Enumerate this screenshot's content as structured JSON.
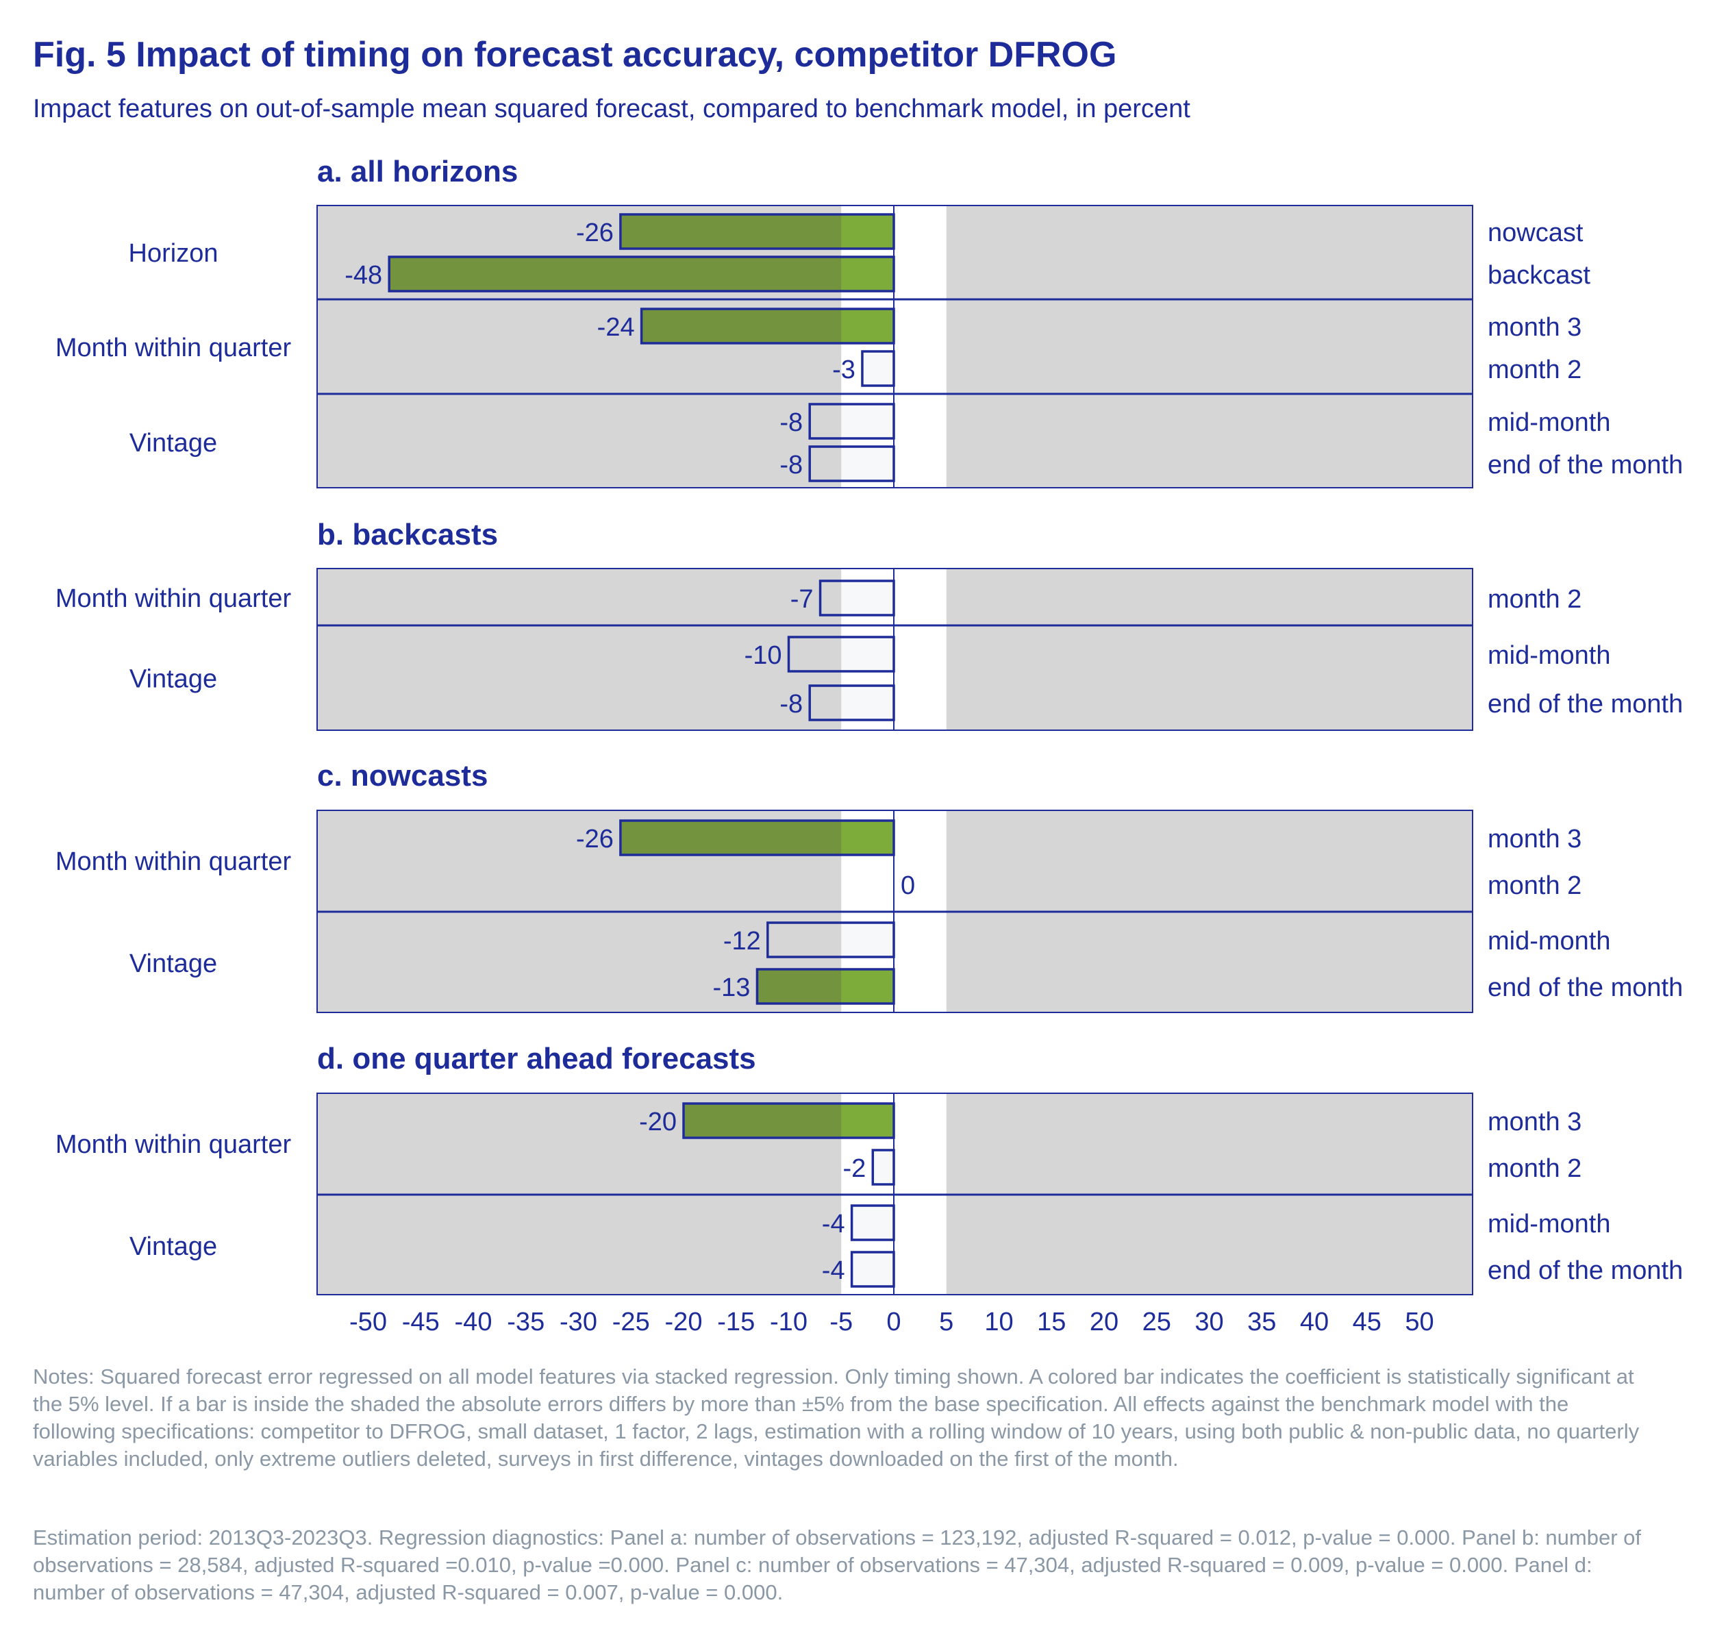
{
  "title": "Fig. 5 Impact of timing on forecast accuracy, competitor DFROG",
  "subtitle": "Impact features on out-of-sample mean squared forecast, compared to benchmark model, in percent",
  "colors": {
    "text": "#1E2C9A",
    "frame": "#1E2C9A",
    "shade": "#D6D6D6",
    "band": "#FFFFFF",
    "significant_bar": "#74933E",
    "significant_bar_in_band": "#7DAC3B",
    "insignificant_bar": "#F7F8FA",
    "notes": "#8A98A6"
  },
  "chart_data": {
    "type": "bar",
    "orientation": "horizontal",
    "xlim": [
      -55,
      55
    ],
    "xticks": [
      -50,
      -45,
      -40,
      -35,
      -30,
      -25,
      -20,
      -15,
      -10,
      -5,
      0,
      5,
      10,
      15,
      20,
      25,
      30,
      35,
      40,
      45,
      50
    ],
    "shaded_band": [
      -5,
      5
    ],
    "panels": [
      {
        "title": "a. all horizons",
        "groups": [
          {
            "label": "Horizon",
            "bars": [
              {
                "label": "nowcast",
                "value": -26,
                "significant": true
              },
              {
                "label": "backcast",
                "value": -48,
                "significant": true
              }
            ]
          },
          {
            "label": "Month within quarter",
            "bars": [
              {
                "label": "month 3",
                "value": -24,
                "significant": true
              },
              {
                "label": "month 2",
                "value": -3,
                "significant": false
              }
            ]
          },
          {
            "label": "Vintage",
            "bars": [
              {
                "label": "mid-month",
                "value": -8,
                "significant": false
              },
              {
                "label": "end of the month",
                "value": -8,
                "significant": false
              }
            ]
          }
        ]
      },
      {
        "title": "b. backcasts",
        "groups": [
          {
            "label": "Month within quarter",
            "bars": [
              {
                "label": "month 2",
                "value": -7,
                "significant": false
              }
            ]
          },
          {
            "label": "Vintage",
            "bars": [
              {
                "label": "mid-month",
                "value": -10,
                "significant": false
              },
              {
                "label": "end of the month",
                "value": -8,
                "significant": false
              }
            ]
          }
        ]
      },
      {
        "title": "c. nowcasts",
        "groups": [
          {
            "label": "Month within quarter",
            "bars": [
              {
                "label": "month 3",
                "value": -26,
                "significant": true
              },
              {
                "label": "month 2",
                "value": 0,
                "significant": false
              }
            ]
          },
          {
            "label": "Vintage",
            "bars": [
              {
                "label": "mid-month",
                "value": -12,
                "significant": false
              },
              {
                "label": "end of the month",
                "value": -13,
                "significant": true
              }
            ]
          }
        ]
      },
      {
        "title": "d. one quarter ahead forecasts",
        "groups": [
          {
            "label": "Month within quarter",
            "bars": [
              {
                "label": "month 3",
                "value": -20,
                "significant": true
              },
              {
                "label": "month 2",
                "value": -2,
                "significant": false
              }
            ]
          },
          {
            "label": "Vintage",
            "bars": [
              {
                "label": "mid-month",
                "value": -4,
                "significant": false
              },
              {
                "label": "end of the month",
                "value": -4,
                "significant": false
              }
            ]
          }
        ]
      }
    ]
  },
  "notes": [
    "Notes: Squared forecast error regressed on all model features via stacked regression. Only timing shown. A colored bar indicates the coefficient is statistically significant at the 5% level. If a bar is inside the shaded the absolute errors differs by more than ±5% from the base specification. All effects against the benchmark model with the following specifications: competitor to DFROG, small dataset, 1 factor, 2 lags, estimation with a rolling window of 10 years, using both public & non-public data, no quarterly variables included, only extreme outliers deleted, surveys in first difference, vintages downloaded on the first of the month.",
    "Estimation period: 2013Q3-2023Q3. Regression diagnostics: Panel a: number of observations = 123,192, adjusted R-squared = 0.012, p-value = 0.000. Panel b: number of observations = 28,584, adjusted R-squared =0.010, p-value =0.000. Panel c: number of observations = 47,304, adjusted R-squared = 0.009, p-value = 0.000. Panel d: number of observations = 47,304, adjusted R-squared = 0.007, p-value = 0.000."
  ]
}
